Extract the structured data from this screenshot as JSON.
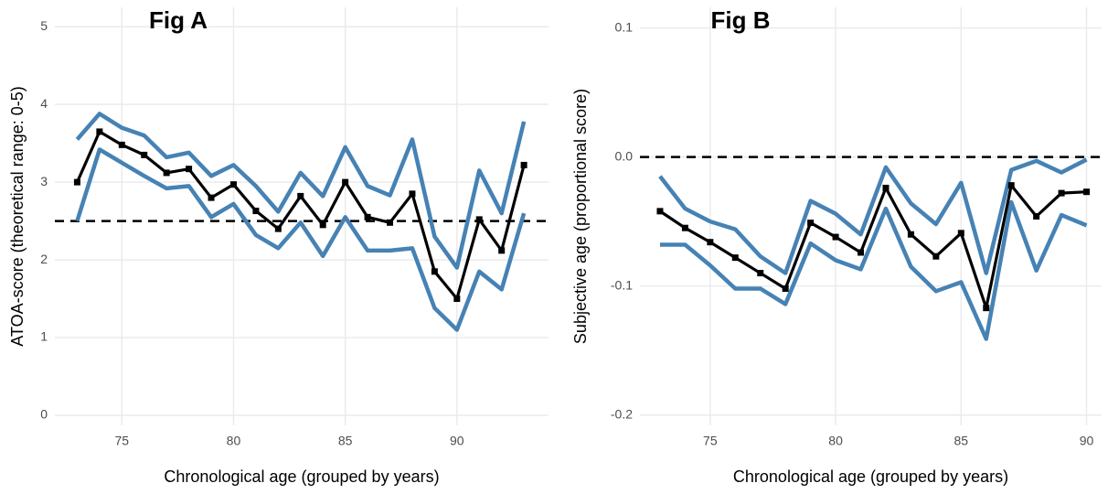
{
  "chart_data": [
    {
      "type": "line",
      "title": "Fig A",
      "x_label": "Chronological age (grouped by years)",
      "y_label": "ATOA-score (theoretical range: 0-5)",
      "x": [
        73,
        74,
        75,
        76,
        77,
        78,
        79,
        80,
        81,
        82,
        83,
        84,
        85,
        86,
        87,
        88,
        89,
        90,
        91,
        92,
        93
      ],
      "series": [
        {
          "color": "#4682b4",
          "values": [
            3.55,
            3.88,
            3.7,
            3.6,
            3.32,
            3.38,
            3.08,
            3.22,
            2.95,
            2.62,
            3.12,
            2.82,
            3.45,
            2.95,
            2.83,
            3.55,
            2.3,
            1.9,
            3.15,
            2.6,
            3.78
          ]
        },
        {
          "color": "#4682b4",
          "values": [
            2.5,
            3.42,
            3.25,
            3.08,
            2.92,
            2.95,
            2.55,
            2.72,
            2.32,
            2.15,
            2.48,
            2.05,
            2.55,
            2.12,
            2.12,
            2.15,
            1.38,
            1.1,
            1.85,
            1.62,
            2.6
          ]
        },
        {
          "color": "#000000",
          "marker": "square",
          "values": [
            3.0,
            3.65,
            3.48,
            3.35,
            3.12,
            3.17,
            2.8,
            2.97,
            2.63,
            2.4,
            2.82,
            2.45,
            3.0,
            2.55,
            2.48,
            2.85,
            1.85,
            1.5,
            2.52,
            2.12,
            3.22
          ]
        }
      ],
      "reference_line": 2.5,
      "xlim": [
        72,
        94.1
      ],
      "ylim": [
        -0.13,
        5.25
      ],
      "xticks": [
        75,
        80,
        85,
        90
      ],
      "yticks": [
        0,
        1,
        2,
        3,
        4,
        5
      ],
      "grid": true
    },
    {
      "type": "line",
      "title": "Fig B",
      "x_label": "Chronological age (grouped by years)",
      "y_label": "Subjective age (proportional score)",
      "x": [
        73,
        74,
        75,
        76,
        77,
        78,
        79,
        80,
        81,
        82,
        83,
        84,
        85,
        86,
        87,
        88,
        89,
        90
      ],
      "series": [
        {
          "color": "#4682b4",
          "values": [
            -0.015,
            -0.04,
            -0.05,
            -0.056,
            -0.077,
            -0.09,
            -0.034,
            -0.044,
            -0.06,
            -0.008,
            -0.036,
            -0.052,
            -0.02,
            -0.09,
            -0.01,
            -0.003,
            -0.012,
            -0.002
          ]
        },
        {
          "color": "#4682b4",
          "values": [
            -0.068,
            -0.068,
            -0.084,
            -0.102,
            -0.102,
            -0.114,
            -0.067,
            -0.08,
            -0.087,
            -0.04,
            -0.085,
            -0.104,
            -0.097,
            -0.141,
            -0.035,
            -0.088,
            -0.045,
            -0.053
          ]
        },
        {
          "color": "#000000",
          "marker": "square",
          "values": [
            -0.042,
            -0.055,
            -0.066,
            -0.078,
            -0.09,
            -0.102,
            -0.051,
            -0.062,
            -0.074,
            -0.024,
            -0.06,
            -0.077,
            -0.059,
            -0.117,
            -0.022,
            -0.046,
            -0.028,
            -0.027
          ]
        }
      ],
      "reference_line": 0,
      "xlim": [
        72.2,
        90.6
      ],
      "ylim": [
        -0.208,
        0.116
      ],
      "xticks": [
        75,
        80,
        85,
        90
      ],
      "yticks": [
        0.1,
        {
          "value": 0,
          "label": "0.0"
        },
        -0.1,
        -0.2
      ],
      "grid": true
    }
  ]
}
